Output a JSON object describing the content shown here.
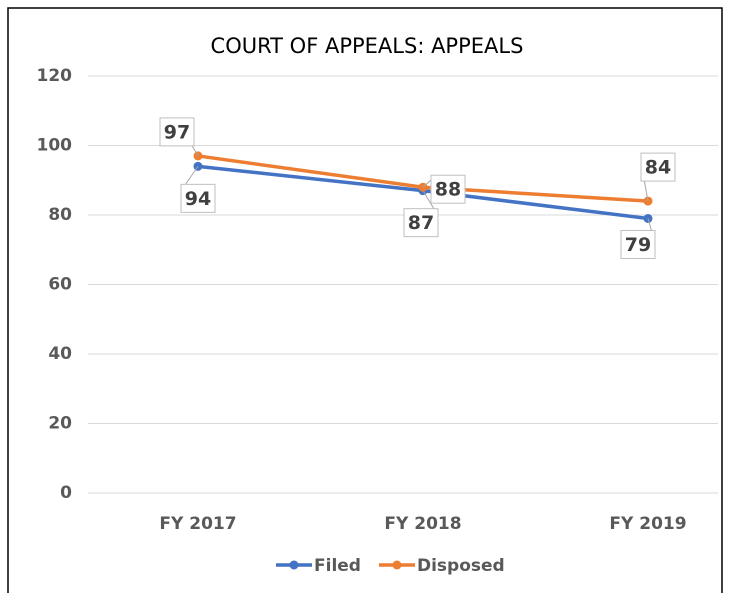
{
  "chart_data": {
    "type": "line",
    "title": "COURT OF APPEALS: APPEALS",
    "categories": [
      "FY 2017",
      "FY 2018",
      "FY 2019"
    ],
    "series": [
      {
        "name": "Filed",
        "color": "#4472c4",
        "values": [
          94,
          87,
          79
        ]
      },
      {
        "name": "Disposed",
        "color": "#ed7d31",
        "values": [
          97,
          88,
          84
        ]
      }
    ],
    "ylim": [
      0,
      120
    ],
    "yticks": [
      0,
      20,
      40,
      60,
      80,
      100,
      120
    ],
    "grid": true,
    "legend": "bottom"
  }
}
